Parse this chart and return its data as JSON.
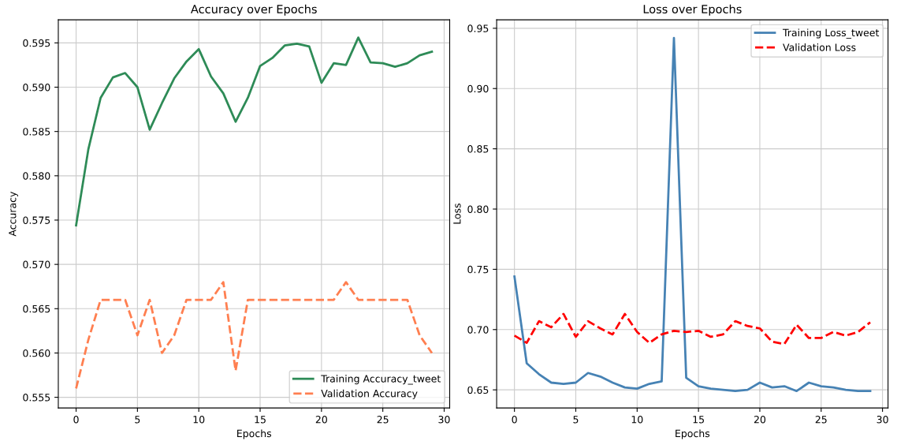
{
  "chart_data": [
    {
      "type": "line",
      "title": "Accuracy over Epochs",
      "xlabel": "Epochs",
      "ylabel": "Accuracy",
      "x": [
        0,
        1,
        2,
        3,
        4,
        5,
        6,
        7,
        8,
        9,
        10,
        11,
        12,
        13,
        14,
        15,
        16,
        17,
        18,
        19,
        20,
        21,
        22,
        23,
        24,
        25,
        26,
        27,
        28,
        29
      ],
      "series": [
        {
          "name": "Training Accuracy_tweet",
          "color": "#2e8b57",
          "line_style": "solid",
          "values": [
            0.5744,
            0.583,
            0.5888,
            0.5911,
            0.5916,
            0.59,
            0.5852,
            0.5882,
            0.591,
            0.5929,
            0.5943,
            0.5912,
            0.5893,
            0.5861,
            0.5888,
            0.5924,
            0.5933,
            0.5947,
            0.5949,
            0.5946,
            0.5905,
            0.5927,
            0.5925,
            0.5956,
            0.5928,
            0.5927,
            0.5923,
            0.5927,
            0.5936,
            0.594
          ]
        },
        {
          "name": "Validation Accuracy",
          "color": "#ff7f50",
          "line_style": "dashed",
          "values": [
            0.556,
            0.5615,
            0.566,
            0.566,
            0.566,
            0.562,
            0.566,
            0.56,
            0.562,
            0.566,
            0.566,
            0.566,
            0.568,
            0.558,
            0.566,
            0.566,
            0.566,
            0.566,
            0.566,
            0.566,
            0.566,
            0.566,
            0.568,
            0.566,
            0.566,
            0.566,
            0.566,
            0.566,
            0.562,
            0.56
          ]
        }
      ],
      "xlim": [
        -1.45,
        30.45
      ],
      "xticks": [
        0,
        5,
        10,
        15,
        20,
        25,
        30
      ],
      "ylim": [
        0.5538,
        0.5976
      ],
      "yticks": [
        {
          "value": 0.555,
          "label": "0.555"
        },
        {
          "value": 0.56,
          "label": "0.560"
        },
        {
          "value": 0.565,
          "label": "0.565"
        },
        {
          "value": 0.57,
          "label": "0.570"
        },
        {
          "value": 0.575,
          "label": "0.575"
        },
        {
          "value": 0.58,
          "label": "0.580"
        },
        {
          "value": 0.585,
          "label": "0.585"
        },
        {
          "value": 0.59,
          "label": "0.590"
        },
        {
          "value": 0.595,
          "label": "0.595"
        }
      ],
      "grid": true,
      "legend": "lower right",
      "marker": "none"
    },
    {
      "type": "line",
      "title": "Loss over Epochs",
      "xlabel": "Epochs",
      "ylabel": "Loss",
      "x": [
        0,
        1,
        2,
        3,
        4,
        5,
        6,
        7,
        8,
        9,
        10,
        11,
        12,
        13,
        14,
        15,
        16,
        17,
        18,
        19,
        20,
        21,
        22,
        23,
        24,
        25,
        26,
        27,
        28,
        29
      ],
      "series": [
        {
          "name": "Training Loss_tweet",
          "color": "#4682b4",
          "line_style": "solid",
          "values": [
            0.744,
            0.672,
            0.663,
            0.656,
            0.655,
            0.656,
            0.664,
            0.661,
            0.656,
            0.652,
            0.651,
            0.655,
            0.657,
            0.942,
            0.66,
            0.653,
            0.651,
            0.65,
            0.649,
            0.65,
            0.656,
            0.652,
            0.653,
            0.649,
            0.656,
            0.653,
            0.652,
            0.65,
            0.649,
            0.649
          ]
        },
        {
          "name": "Validation Loss",
          "color": "#ff0000",
          "line_style": "dashed",
          "values": [
            0.695,
            0.689,
            0.707,
            0.702,
            0.713,
            0.694,
            0.707,
            0.701,
            0.696,
            0.713,
            0.698,
            0.689,
            0.696,
            0.699,
            0.698,
            0.699,
            0.694,
            0.696,
            0.707,
            0.703,
            0.701,
            0.69,
            0.688,
            0.704,
            0.693,
            0.693,
            0.698,
            0.695,
            0.698,
            0.706
          ]
        }
      ],
      "xlim": [
        -1.45,
        30.45
      ],
      "xticks": [
        0,
        5,
        10,
        15,
        20,
        25,
        30
      ],
      "ylim": [
        0.635,
        0.957
      ],
      "yticks": [
        {
          "value": 0.65,
          "label": "0.65"
        },
        {
          "value": 0.7,
          "label": "0.70"
        },
        {
          "value": 0.75,
          "label": "0.75"
        },
        {
          "value": 0.8,
          "label": "0.80"
        },
        {
          "value": 0.85,
          "label": "0.85"
        },
        {
          "value": 0.9,
          "label": "0.90"
        },
        {
          "value": 0.95,
          "label": "0.95"
        }
      ],
      "grid": true,
      "legend": "upper right",
      "marker": "none"
    }
  ]
}
